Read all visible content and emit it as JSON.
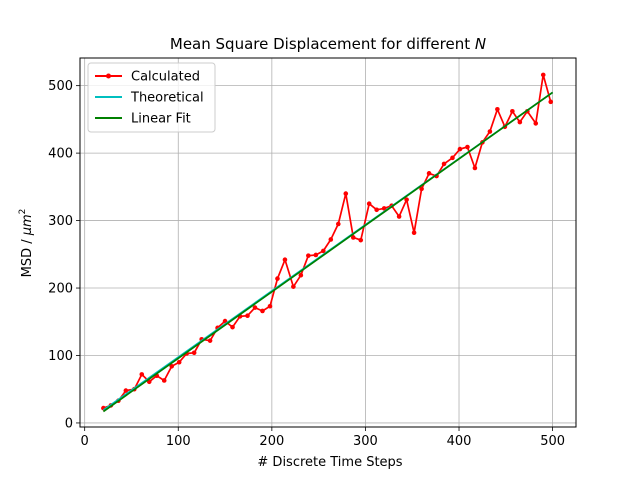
{
  "chart_data": {
    "type": "line",
    "title_prefix": "Mean Square Displacement for different ",
    "title_var": "N",
    "xlabel": "# Discrete Time Steps",
    "ylabel_prefix": "MSD / ",
    "ylabel_unit": "μm",
    "ylabel_exp": "2",
    "xlim": [
      -5,
      525
    ],
    "ylim": [
      -6,
      541
    ],
    "xticks": [
      0,
      100,
      200,
      300,
      400,
      500
    ],
    "yticks": [
      0,
      100,
      200,
      300,
      400,
      500
    ],
    "grid": true,
    "legend_position": "top-left",
    "series": [
      {
        "name": "Calculated",
        "color": "#ff0000",
        "marker": "circle",
        "x": [
          20,
          28,
          36,
          44,
          53,
          61,
          69,
          77,
          85,
          93,
          101,
          109,
          117,
          125,
          134,
          142,
          150,
          158,
          166,
          174,
          182,
          190,
          198,
          206,
          214,
          223,
          231,
          239,
          247,
          255,
          263,
          271,
          279,
          287,
          295,
          304,
          312,
          320,
          328,
          336,
          344,
          352,
          360,
          368,
          376,
          384,
          393,
          401,
          409,
          417,
          425,
          433,
          441,
          449,
          457,
          465,
          473,
          482,
          490,
          498
        ],
        "y": [
          22,
          26,
          33,
          48,
          50,
          72,
          61,
          70,
          63,
          84,
          90,
          103,
          104,
          124,
          122,
          141,
          151,
          142,
          158,
          159,
          171,
          166,
          173,
          214,
          242,
          202,
          219,
          248,
          249,
          255,
          272,
          295,
          340,
          275,
          271,
          325,
          316,
          318,
          322,
          306,
          331,
          282,
          347,
          370,
          366,
          384,
          393,
          406,
          409,
          378,
          416,
          432,
          465,
          439,
          462,
          446,
          462,
          444,
          516,
          476
        ]
      },
      {
        "name": "Theoretical",
        "color": "#00bfbf",
        "x": [
          20,
          500
        ],
        "y": [
          19,
          490
        ]
      },
      {
        "name": "Linear Fit",
        "color": "#008000",
        "x": [
          20,
          500
        ],
        "y": [
          17,
          490
        ]
      }
    ]
  }
}
